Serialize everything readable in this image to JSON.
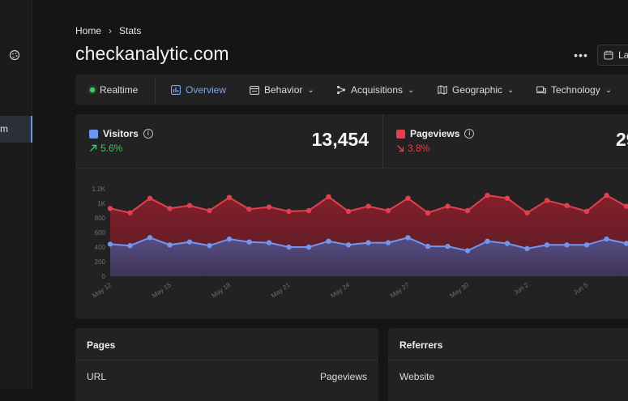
{
  "sidebar": {
    "icon": "palette-icon",
    "active_item_label": "m"
  },
  "breadcrumb": {
    "home": "Home",
    "current": "Stats"
  },
  "header": {
    "title": "checkanalytic.com",
    "more_label": "•••",
    "date_label": "La"
  },
  "tabs": [
    {
      "label": "Realtime",
      "icon": "live-dot-icon"
    },
    {
      "label": "Overview",
      "icon": "bar-chart-icon",
      "active": true
    },
    {
      "label": "Behavior",
      "icon": "layout-icon"
    },
    {
      "label": "Acquisitions",
      "icon": "share-nodes-icon"
    },
    {
      "label": "Geographic",
      "icon": "map-icon"
    },
    {
      "label": "Technology",
      "icon": "devices-icon"
    }
  ],
  "metrics": {
    "visitors": {
      "label": "Visitors",
      "change": "5.6%",
      "value": "13,454",
      "color": "#6e96f0",
      "trend": "up"
    },
    "pageviews": {
      "label": "Pageviews",
      "change": "3.8%",
      "value": "29",
      "color": "#e0404f",
      "trend": "down"
    }
  },
  "chart_data": {
    "type": "area",
    "x": [
      "May 12",
      "May 13",
      "May 14",
      "May 15",
      "May 16",
      "May 17",
      "May 18",
      "May 19",
      "May 20",
      "May 21",
      "May 22",
      "May 23",
      "May 24",
      "May 25",
      "May 26",
      "May 27",
      "May 28",
      "May 29",
      "May 30",
      "May 31",
      "Jun 1",
      "Jun 2",
      "Jun 3",
      "Jun 4",
      "Jun 5",
      "Jun 6",
      "Jun 7"
    ],
    "tick_labels": [
      "May 12",
      "May 15",
      "May 18",
      "May 21",
      "May 24",
      "May 27",
      "May 30",
      "Jun 2",
      "Jun 5",
      "Ju"
    ],
    "y_ticks": [
      "0",
      "200",
      "400",
      "600",
      "800",
      "1K",
      "1.2K"
    ],
    "ylim": [
      0,
      1200
    ],
    "series": [
      {
        "key": "pageviews",
        "color": "#e0404f",
        "values": [
          930,
          870,
          1070,
          930,
          970,
          900,
          1080,
          920,
          950,
          890,
          900,
          1090,
          890,
          960,
          900,
          1070,
          870,
          960,
          900,
          1110,
          1070,
          870,
          1040,
          970,
          890,
          1110,
          960
        ]
      },
      {
        "key": "visitors",
        "color": "#7096f0",
        "values": [
          440,
          420,
          530,
          430,
          470,
          420,
          510,
          470,
          460,
          400,
          400,
          480,
          430,
          460,
          460,
          530,
          410,
          410,
          350,
          480,
          450,
          380,
          430,
          430,
          430,
          510,
          450
        ]
      }
    ]
  },
  "panels": {
    "pages": {
      "title": "Pages",
      "col_left": "URL",
      "col_right": "Pageviews"
    },
    "referrers": {
      "title": "Referrers",
      "col_left": "Website"
    }
  }
}
